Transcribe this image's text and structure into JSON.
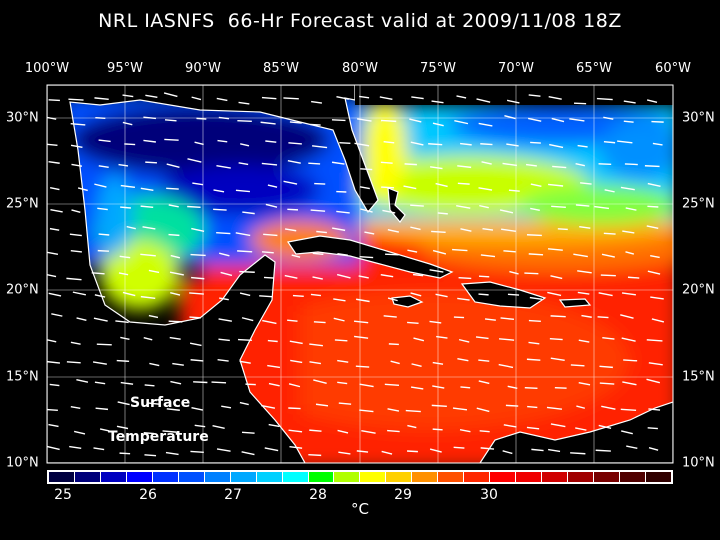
{
  "title": "NRL IASNFS  66-Hr Forecast valid at 2009/11/08 18Z",
  "lon_labels": [
    "100°W",
    "95°W",
    "90°W",
    "85°W",
    "80°W",
    "75°W",
    "70°W",
    "65°W",
    "60°W"
  ],
  "lat_labels": [
    "30°N",
    "25°N",
    "20°N",
    "15°N",
    "10°N"
  ],
  "map_label": {
    "line1": "Surface",
    "line2": "Temperature"
  },
  "colorbar": {
    "colors": [
      "#000040",
      "#00007a",
      "#0000c0",
      "#0000ff",
      "#0030ff",
      "#0050ff",
      "#0080ff",
      "#00a8ff",
      "#00d0ff",
      "#00ffff",
      "#00ff00",
      "#b0ff00",
      "#ffff00",
      "#ffd000",
      "#ff9000",
      "#ff5000",
      "#ff2800",
      "#ff0000",
      "#f00000",
      "#d00000",
      "#a00000",
      "#780000",
      "#500000",
      "#300000"
    ],
    "tick_labels": [
      "25",
      "26",
      "27",
      "28",
      "29",
      "30"
    ],
    "unit": "°C"
  }
}
